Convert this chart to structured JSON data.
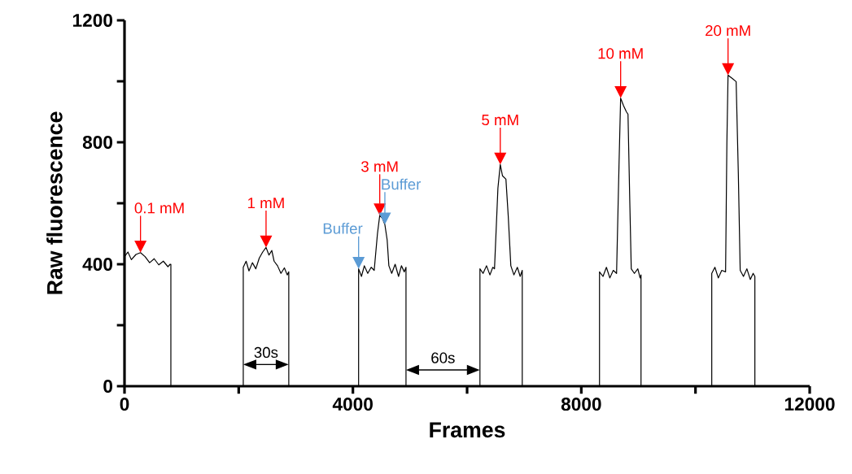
{
  "chart_data": {
    "type": "line",
    "xlabel": "Frames",
    "ylabel": "Raw fluorescence",
    "xlim": [
      0,
      12000
    ],
    "ylim": [
      0,
      1200
    ],
    "xticks": [
      0,
      {
        "value": 2000,
        "label": null
      },
      4000,
      {
        "value": 6000,
        "label": null
      },
      8000,
      {
        "value": 10000,
        "label": null
      },
      12000
    ],
    "yticks": [
      0,
      {
        "value": 200,
        "label": null
      },
      400,
      {
        "value": 600,
        "label": null
      },
      800,
      {
        "value": 1000,
        "label": null
      },
      1200
    ],
    "series": [
      {
        "color": "#000000",
        "x": [
          0,
          60,
          120,
          200,
          280,
          360,
          440,
          520,
          600,
          680,
          760,
          800,
          812,
          812,
          2080,
          2080,
          2130,
          2180,
          2240,
          2300,
          2360,
          2420,
          2479,
          2530,
          2580,
          2620,
          2680,
          2740,
          2800,
          2850,
          2877,
          2877,
          4100,
          4100,
          4150,
          4200,
          4260,
          4320,
          4373,
          4430,
          4470,
          4515,
          4560,
          4600,
          4630,
          4680,
          4740,
          4800,
          4850,
          4900,
          4930,
          4930,
          6225,
          6225,
          6280,
          6340,
          6400,
          6450,
          6480,
          6540,
          6581,
          6620,
          6680,
          6720,
          6766,
          6820,
          6880,
          6930,
          6966,
          6966,
          8319,
          8319,
          8380,
          8440,
          8500,
          8560,
          8618,
          8660,
          8689,
          8740,
          8790,
          8818,
          8850,
          8875,
          8930,
          8990,
          9030,
          9046,
          9046,
          10285,
          10285,
          10340,
          10400,
          10460,
          10527,
          10550,
          10570,
          10640,
          10712,
          10750,
          10783,
          10840,
          10900,
          10960,
          11010,
          11040,
          11040
        ],
        "values": [
          425,
          440,
          415,
          432,
          438,
          425,
          405,
          418,
          398,
          410,
          392,
          400,
          400,
          0,
          0,
          390,
          410,
          378,
          405,
          385,
          420,
          440,
          455,
          430,
          445,
          410,
          395,
          370,
          388,
          365,
          375,
          0,
          0,
          385,
          360,
          395,
          370,
          390,
          380,
          500,
          560,
          551,
          530,
          480,
          395,
          370,
          400,
          360,
          395,
          375,
          390,
          0,
          0,
          385,
          370,
          395,
          365,
          390,
          385,
          650,
          727,
          690,
          679,
          560,
          395,
          365,
          390,
          360,
          380,
          0,
          0,
          375,
          360,
          390,
          355,
          380,
          370,
          720,
          945,
          920,
          900,
          892,
          600,
          385,
          370,
          385,
          355,
          365,
          0,
          0,
          370,
          390,
          355,
          380,
          375,
          800,
          1020,
          1010,
          999,
          700,
          380,
          360,
          385,
          350,
          370,
          360,
          0
        ]
      }
    ],
    "annotations": [
      {
        "text": "0.1 mM",
        "x": 280,
        "y": 438
      },
      {
        "text": "1 mM",
        "x": 2479,
        "y": 455
      },
      {
        "text": "3 mM",
        "x": 4470,
        "y": 560
      },
      {
        "text": "5 mM",
        "x": 6581,
        "y": 727
      },
      {
        "text": "10 mM",
        "x": 8689,
        "y": 945
      },
      {
        "text": "20 mM",
        "x": 10570,
        "y": 1020
      },
      {
        "text": "Buffer",
        "x": 4100,
        "y": 385
      },
      {
        "text": "Buffer",
        "x": 4560,
        "y": 530
      },
      "30s",
      {
        "text": "60s",
        "x": 4930,
        "y": 0
      }
    ]
  }
}
